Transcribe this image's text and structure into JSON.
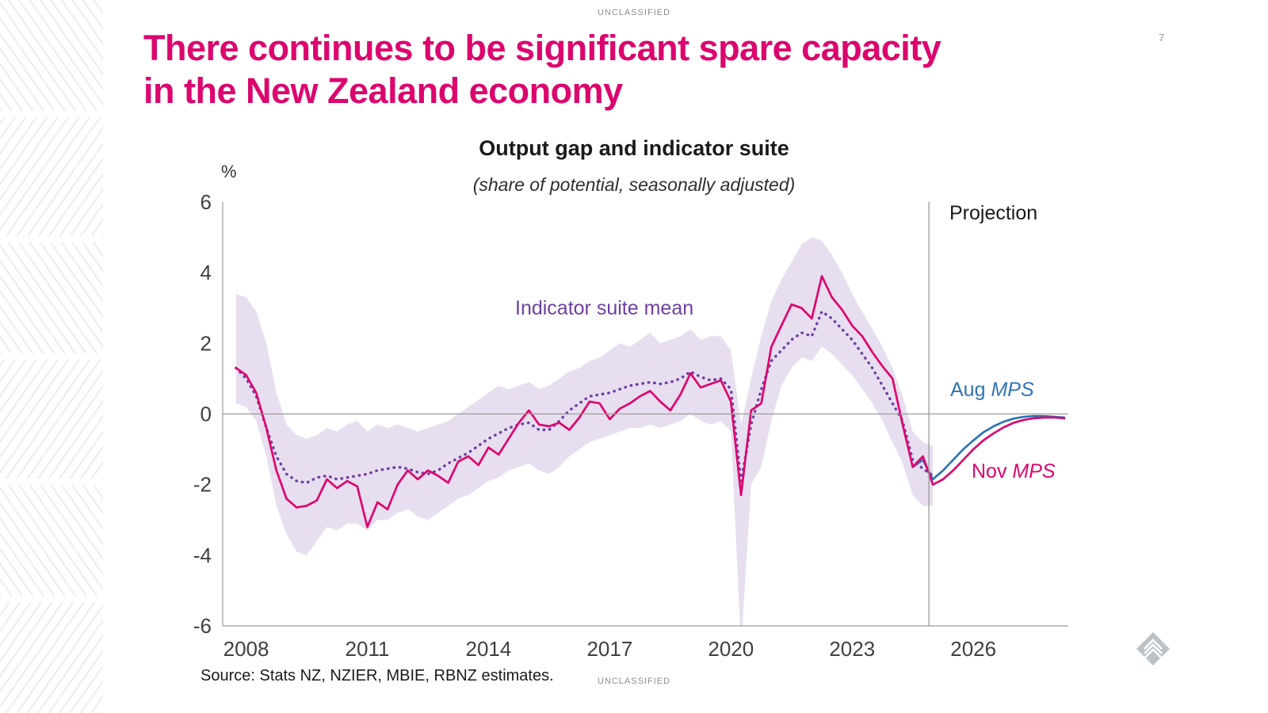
{
  "page": {
    "classification_top": "UNCLASSIFIED",
    "classification_bottom": "UNCLASSIFIED",
    "page_number": "7",
    "title_line1": "There continues to be significant spare capacity",
    "title_line2": "in the New Zealand economy",
    "source": "Source: Stats NZ, NZIER, MBIE, RBNZ estimates.",
    "accent_pink": "#DC056E"
  },
  "chart_data": {
    "type": "line",
    "title": "Output gap and indicator suite",
    "subtitle": "(share of potential, seasonally adjusted)",
    "ylabel": "%",
    "xlim": [
      2007.42,
      2028.35
    ],
    "ylim": [
      -6,
      6
    ],
    "y_ticks": [
      6,
      4,
      2,
      0,
      -2,
      -4,
      -6
    ],
    "x_ticks": [
      2008,
      2011,
      2014,
      2017,
      2020,
      2023,
      2026
    ],
    "grid": "zero-line-only",
    "projection_start": 2024.9,
    "labels": {
      "projection": "Projection",
      "indicator": "Indicator suite mean",
      "aug_prefix": "Aug ",
      "nov_prefix": "Nov ",
      "mps_italic": "MPS"
    },
    "colors": {
      "nov": "#DC056E",
      "aug": "#2E75B6",
      "indicator": "#6E3FA3",
      "band": "#E7DEEF",
      "axis": "#9b9b9b",
      "tick_text": "#404040"
    },
    "series": [
      {
        "name": "Indicator suite range",
        "kind": "band",
        "x_start": 2007.75,
        "x_step": 0.25,
        "upper": [
          3.4,
          3.3,
          2.9,
          2.0,
          0.6,
          -0.3,
          -0.6,
          -0.7,
          -0.6,
          -0.4,
          -0.5,
          -0.3,
          -0.2,
          -0.5,
          -0.3,
          -0.4,
          -0.3,
          -0.4,
          -0.5,
          -0.4,
          -0.3,
          -0.2,
          0.0,
          0.2,
          0.4,
          0.6,
          0.8,
          0.7,
          0.8,
          0.9,
          0.7,
          0.8,
          1.0,
          1.2,
          1.3,
          1.5,
          1.6,
          1.8,
          2.0,
          1.9,
          2.1,
          2.3,
          2.0,
          2.1,
          2.2,
          2.4,
          2.1,
          2.2,
          2.2,
          1.8,
          -0.3,
          1.0,
          2.2,
          3.2,
          3.8,
          4.3,
          4.8,
          5.0,
          4.9,
          4.5,
          4.0,
          3.4,
          2.9,
          2.4,
          1.9,
          1.3,
          0.5,
          -0.5,
          -0.8,
          -0.9
        ],
        "lower": [
          0.3,
          0.2,
          -0.2,
          -1.2,
          -2.6,
          -3.4,
          -3.9,
          -4.0,
          -3.6,
          -3.2,
          -3.3,
          -3.1,
          -3.1,
          -3.3,
          -3.0,
          -3.0,
          -2.8,
          -2.7,
          -2.9,
          -3.0,
          -2.8,
          -2.6,
          -2.4,
          -2.3,
          -2.1,
          -1.9,
          -1.8,
          -1.6,
          -1.5,
          -1.4,
          -1.6,
          -1.7,
          -1.5,
          -1.2,
          -1.0,
          -0.8,
          -0.7,
          -0.6,
          -0.5,
          -0.4,
          -0.4,
          -0.3,
          -0.4,
          -0.3,
          -0.2,
          0.0,
          -0.2,
          -0.3,
          -0.2,
          -0.5,
          -6.6,
          -2.0,
          -1.5,
          -0.2,
          0.8,
          1.3,
          1.6,
          1.5,
          1.9,
          1.7,
          1.4,
          1.1,
          0.7,
          0.3,
          -0.2,
          -0.8,
          -1.4,
          -2.3,
          -2.6,
          -2.6
        ]
      },
      {
        "name": "Indicator suite mean",
        "kind": "dotted",
        "color_key": "indicator",
        "x_start": 2007.75,
        "x_step": 0.25,
        "values": [
          1.3,
          1.0,
          0.5,
          -0.4,
          -1.2,
          -1.7,
          -1.9,
          -1.95,
          -1.8,
          -1.75,
          -1.85,
          -1.8,
          -1.75,
          -1.7,
          -1.6,
          -1.55,
          -1.5,
          -1.55,
          -1.65,
          -1.7,
          -1.6,
          -1.4,
          -1.25,
          -1.1,
          -0.9,
          -0.7,
          -0.55,
          -0.4,
          -0.3,
          -0.25,
          -0.45,
          -0.45,
          -0.2,
          0.1,
          0.3,
          0.5,
          0.55,
          0.6,
          0.7,
          0.8,
          0.85,
          0.9,
          0.85,
          0.9,
          1.0,
          1.2,
          1.05,
          0.95,
          1.0,
          0.7,
          -1.9,
          -0.3,
          0.7,
          1.5,
          1.8,
          2.1,
          2.3,
          2.2,
          2.9,
          2.7,
          2.4,
          2.1,
          1.7,
          1.3,
          0.8,
          0.3,
          -0.2,
          -1.3,
          -1.55,
          -1.75
        ]
      },
      {
        "name": "Aug MPS",
        "kind": "line",
        "color_key": "aug",
        "x_start": 2024.5,
        "x_step": 0.25,
        "values": [
          -1.5,
          -1.3,
          -1.85,
          -1.6,
          -1.3,
          -1.0,
          -0.75,
          -0.52,
          -0.35,
          -0.22,
          -0.13,
          -0.08,
          -0.06,
          -0.06,
          -0.08,
          -0.1
        ]
      },
      {
        "name": "Nov MPS",
        "kind": "line",
        "color_key": "nov",
        "x_start": 2007.75,
        "x_step": 0.25,
        "values": [
          1.3,
          1.1,
          0.6,
          -0.4,
          -1.6,
          -2.4,
          -2.65,
          -2.6,
          -2.45,
          -1.85,
          -2.1,
          -1.9,
          -2.05,
          -3.2,
          -2.5,
          -2.7,
          -2.0,
          -1.6,
          -1.85,
          -1.6,
          -1.75,
          -1.95,
          -1.35,
          -1.2,
          -1.45,
          -0.95,
          -1.15,
          -0.7,
          -0.25,
          0.1,
          -0.3,
          -0.35,
          -0.25,
          -0.45,
          -0.1,
          0.35,
          0.3,
          -0.15,
          0.15,
          0.3,
          0.5,
          0.65,
          0.35,
          0.1,
          0.55,
          1.15,
          0.75,
          0.85,
          0.95,
          0.35,
          -2.3,
          0.1,
          0.3,
          1.9,
          2.5,
          3.1,
          3.0,
          2.7,
          3.9,
          3.3,
          2.95,
          2.5,
          2.2,
          1.75,
          1.35,
          1.0,
          -0.3,
          -1.5,
          -1.2,
          -2.0,
          -1.85,
          -1.6,
          -1.3,
          -1.0,
          -0.75,
          -0.55,
          -0.38,
          -0.25,
          -0.17,
          -0.12,
          -0.1,
          -0.1,
          -0.12
        ]
      }
    ]
  }
}
